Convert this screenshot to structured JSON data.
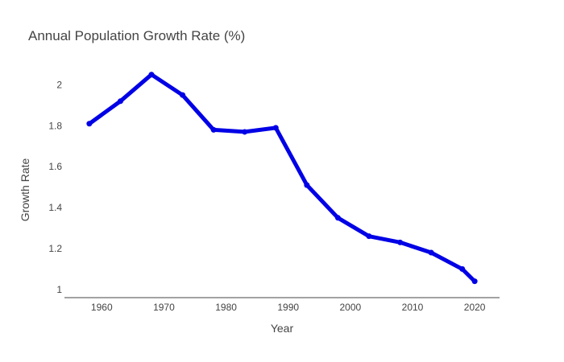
{
  "chart_data": {
    "type": "line",
    "title": "Annual Population Growth Rate (%)",
    "xlabel": "Year",
    "ylabel": "Growth Rate",
    "x": [
      1958,
      1963,
      1968,
      1973,
      1978,
      1983,
      1988,
      1993,
      1998,
      2003,
      2008,
      2013,
      2018,
      2020
    ],
    "series": [
      {
        "values": [
          1.81,
          1.92,
          2.05,
          1.95,
          1.78,
          1.77,
          1.79,
          1.51,
          1.35,
          1.26,
          1.23,
          1.18,
          1.1,
          1.04
        ]
      }
    ],
    "xticks": [
      "1960",
      "1970",
      "1980",
      "1990",
      "2000",
      "2010",
      "2020"
    ],
    "yticks": [
      "1",
      "1.2",
      "1.4",
      "1.6",
      "1.8",
      "2"
    ],
    "xlim": [
      1954,
      2024
    ],
    "ylim": [
      0.96,
      2.1
    ],
    "grid": false,
    "line_color": "#0000e6"
  }
}
